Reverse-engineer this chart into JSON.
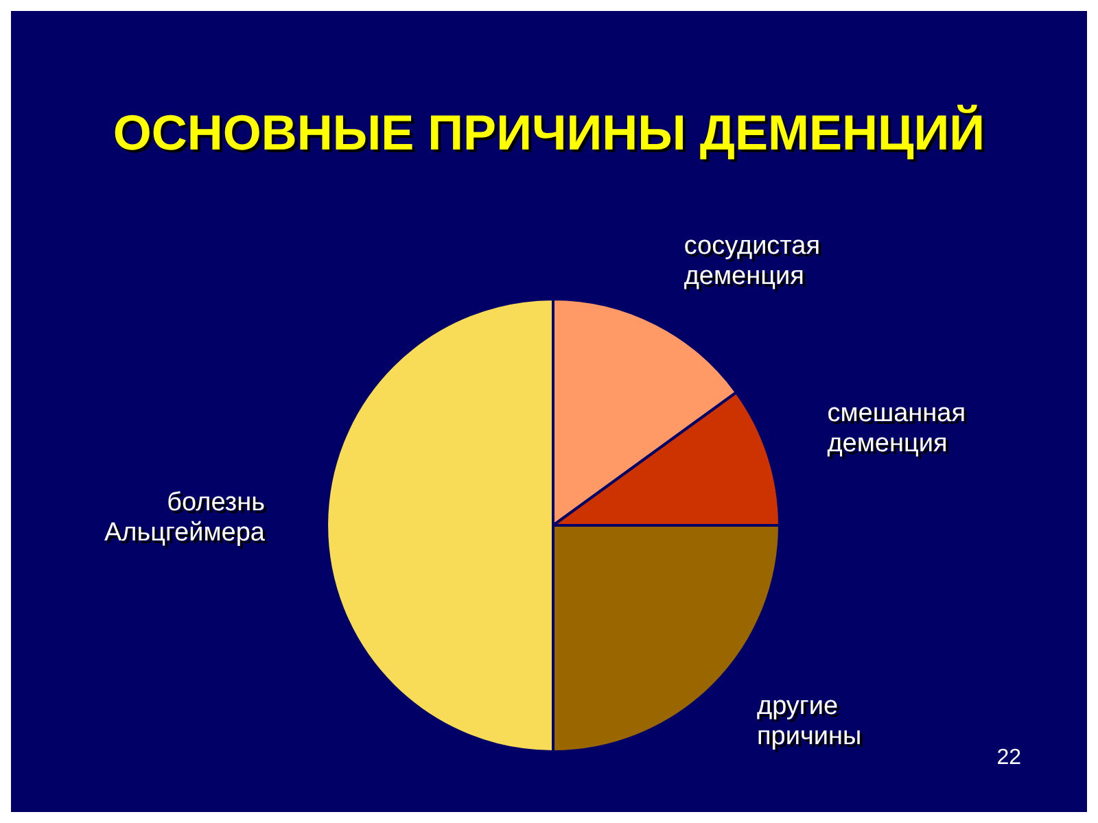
{
  "chart_data": {
    "type": "pie",
    "title": "ОСНОВНЫЕ ПРИЧИНЫ ДЕМЕНЦИЙ",
    "categories": [
      "сосудистая деменция",
      "смешанная деменция",
      "другие причины",
      "болезнь Альцгеймера"
    ],
    "values": [
      15,
      10,
      25,
      50
    ],
    "colors": [
      "#ff9966",
      "#cc3300",
      "#996600",
      "#f8dc58"
    ],
    "annotations": [
      "22"
    ]
  }
}
